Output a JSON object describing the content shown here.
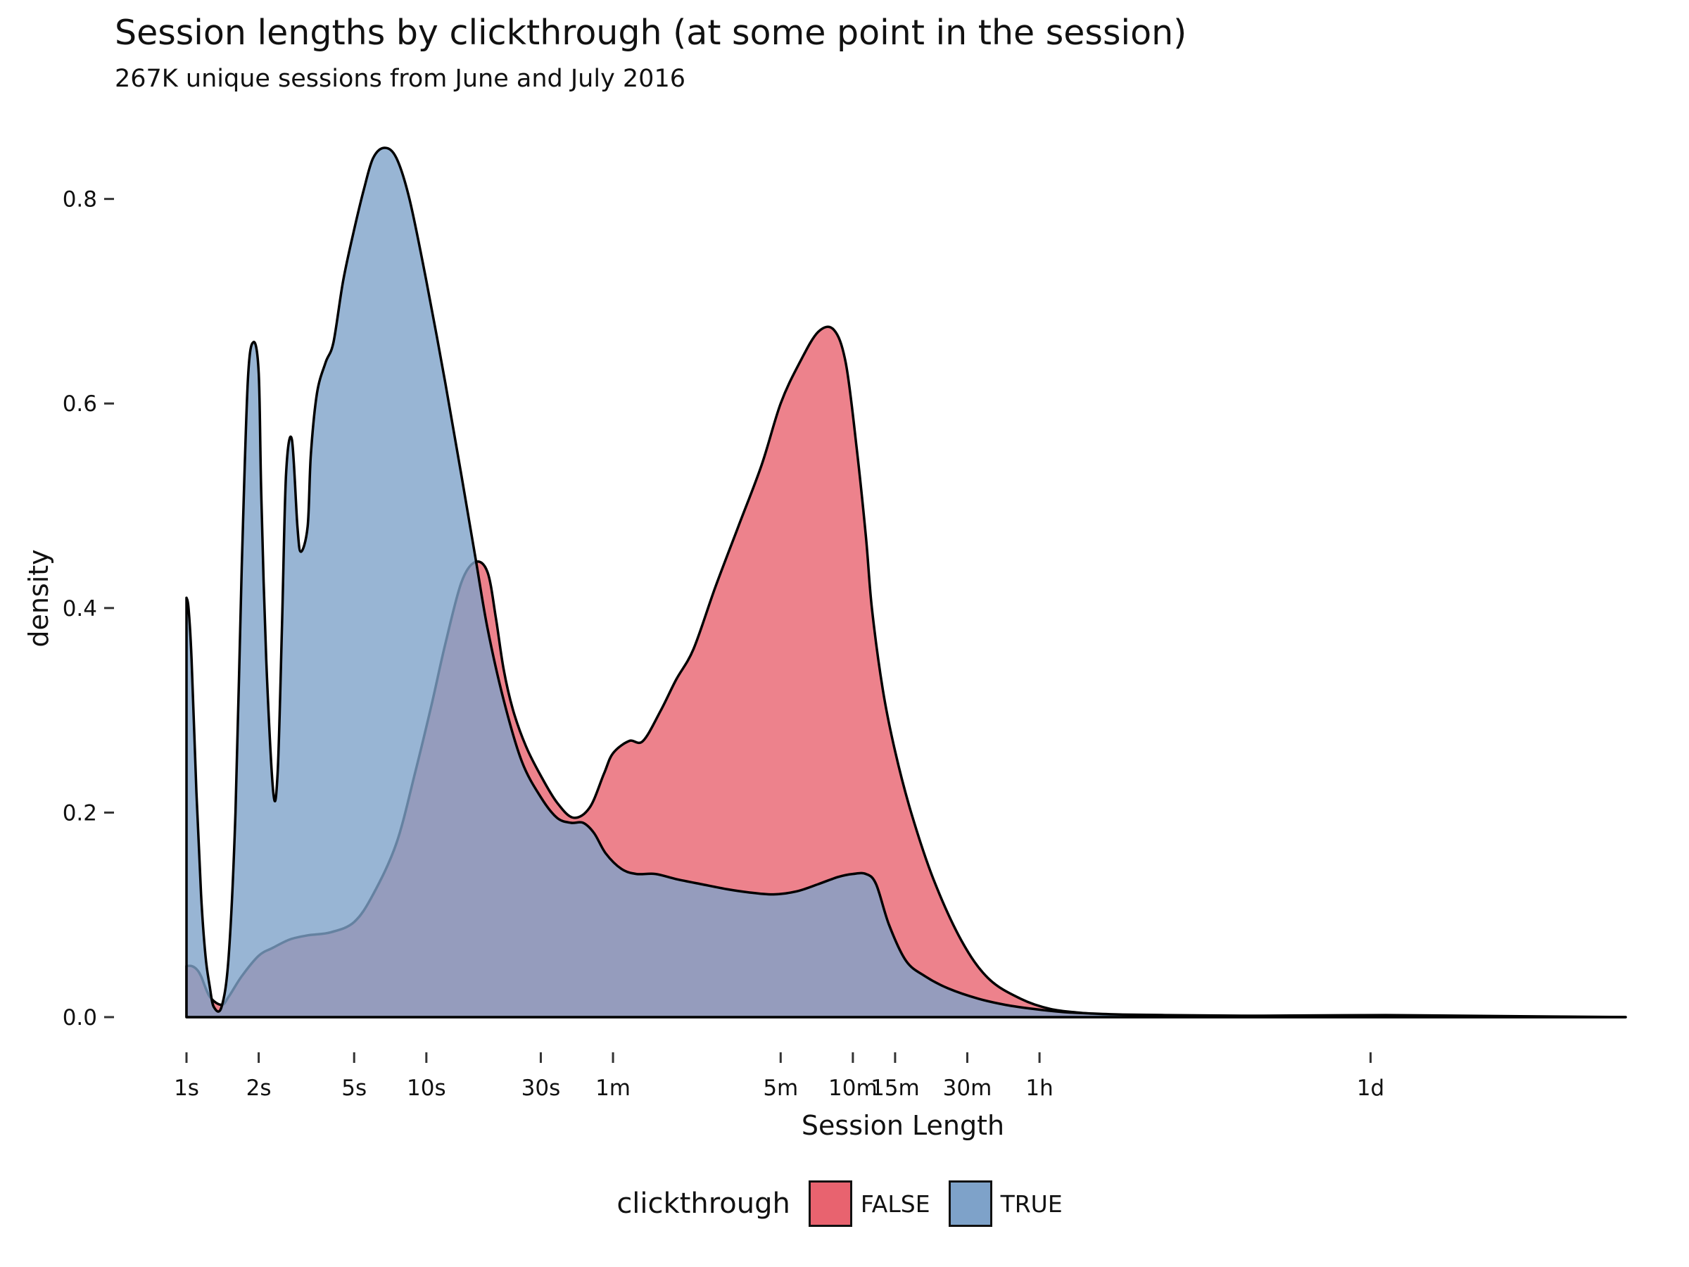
{
  "chart_data": {
    "type": "area",
    "title": "Session lengths by clickthrough (at some point in the session)",
    "subtitle": "267K unique sessions from June and July 2016",
    "xlabel": "Session Length",
    "ylabel": "density",
    "x_scale": "log10 seconds",
    "xlim": [
      1,
      1000000
    ],
    "ylim": [
      0,
      0.85
    ],
    "grid": false,
    "legend_position": "bottom",
    "x_ticks": [
      {
        "label": "1s",
        "value": 1
      },
      {
        "label": "2s",
        "value": 2
      },
      {
        "label": "5s",
        "value": 5
      },
      {
        "label": "10s",
        "value": 10
      },
      {
        "label": "30s",
        "value": 30
      },
      {
        "label": "1m",
        "value": 60
      },
      {
        "label": "5m",
        "value": 300
      },
      {
        "label": "10m",
        "value": 600
      },
      {
        "label": "15m",
        "value": 900
      },
      {
        "label": "30m",
        "value": 1800
      },
      {
        "label": "1h",
        "value": 3600
      },
      {
        "label": "1d",
        "value": 86400
      }
    ],
    "y_ticks": [
      {
        "label": "0.0",
        "value": 0
      },
      {
        "label": "0.2",
        "value": 0.2
      },
      {
        "label": "0.4",
        "value": 0.4
      },
      {
        "label": "0.6",
        "value": 0.6
      },
      {
        "label": "0.8",
        "value": 0.8
      }
    ],
    "legend": {
      "title": "clickthrough"
    },
    "series": [
      {
        "name": "FALSE",
        "color": "#e8636f",
        "opacity": 0.8,
        "x": [
          1,
          1.05,
          1.1,
          1.15,
          1.25,
          1.4,
          1.5,
          1.7,
          2,
          2.3,
          2.7,
          3.2,
          4,
          5,
          6,
          7.5,
          9,
          10.5,
          12,
          14,
          16,
          18,
          19.5,
          21,
          23,
          26,
          30,
          35,
          41,
          48,
          55,
          60,
          70,
          80,
          95,
          110,
          130,
          160,
          200,
          250,
          300,
          360,
          430,
          500,
          560,
          620,
          680,
          720,
          800,
          900,
          1050,
          1300,
          1700,
          2200,
          3000,
          4000,
          5500,
          7500,
          10000,
          13000,
          20000,
          40000,
          100000,
          300000,
          1000000
        ],
        "y": [
          0.05,
          0.05,
          0.047,
          0.04,
          0.02,
          0.012,
          0.02,
          0.04,
          0.06,
          0.068,
          0.076,
          0.08,
          0.083,
          0.093,
          0.12,
          0.17,
          0.24,
          0.305,
          0.365,
          0.425,
          0.445,
          0.435,
          0.39,
          0.34,
          0.3,
          0.265,
          0.236,
          0.21,
          0.195,
          0.205,
          0.238,
          0.258,
          0.27,
          0.27,
          0.3,
          0.33,
          0.36,
          0.42,
          0.48,
          0.54,
          0.6,
          0.64,
          0.67,
          0.672,
          0.64,
          0.56,
          0.47,
          0.4,
          0.32,
          0.26,
          0.2,
          0.135,
          0.075,
          0.038,
          0.018,
          0.008,
          0.004,
          0.002,
          0.001,
          0.0005,
          0.001,
          0.0015,
          0.002,
          0.001,
          0
        ]
      },
      {
        "name": "TRUE",
        "color": "#7ea2c9",
        "opacity": 0.8,
        "x": [
          1,
          1.02,
          1.05,
          1.1,
          1.15,
          1.2,
          1.25,
          1.3,
          1.4,
          1.5,
          1.6,
          1.7,
          1.8,
          1.9,
          2,
          2.05,
          2.15,
          2.3,
          2.4,
          2.5,
          2.6,
          2.75,
          2.9,
          3.0,
          3.2,
          3.3,
          3.5,
          3.8,
          4.1,
          4.5,
          5,
          5.5,
          6,
          6.7,
          7.5,
          8.5,
          10,
          12,
          14,
          16,
          18,
          21,
          25,
          30,
          35,
          40,
          45,
          50,
          56,
          65,
          75,
          90,
          110,
          140,
          180,
          220,
          280,
          350,
          430,
          520,
          600,
          680,
          750,
          850,
          1000,
          1200,
          1500,
          2000,
          2600,
          3400,
          4500,
          6000,
          8000,
          12000,
          20000,
          40000,
          100000,
          300000,
          1000000
        ],
        "y": [
          0.41,
          0.4,
          0.35,
          0.22,
          0.12,
          0.06,
          0.03,
          0.01,
          0.01,
          0.06,
          0.2,
          0.44,
          0.62,
          0.66,
          0.63,
          0.51,
          0.35,
          0.22,
          0.24,
          0.38,
          0.53,
          0.565,
          0.48,
          0.455,
          0.48,
          0.55,
          0.61,
          0.64,
          0.66,
          0.72,
          0.77,
          0.81,
          0.84,
          0.85,
          0.84,
          0.8,
          0.72,
          0.62,
          0.53,
          0.45,
          0.38,
          0.31,
          0.25,
          0.215,
          0.195,
          0.19,
          0.19,
          0.18,
          0.16,
          0.145,
          0.14,
          0.14,
          0.135,
          0.13,
          0.125,
          0.122,
          0.12,
          0.123,
          0.13,
          0.137,
          0.14,
          0.14,
          0.13,
          0.09,
          0.055,
          0.04,
          0.028,
          0.018,
          0.012,
          0.008,
          0.005,
          0.0035,
          0.0025,
          0.002,
          0.0015,
          0.001,
          0.0007,
          0.0004,
          0
        ]
      }
    ]
  }
}
